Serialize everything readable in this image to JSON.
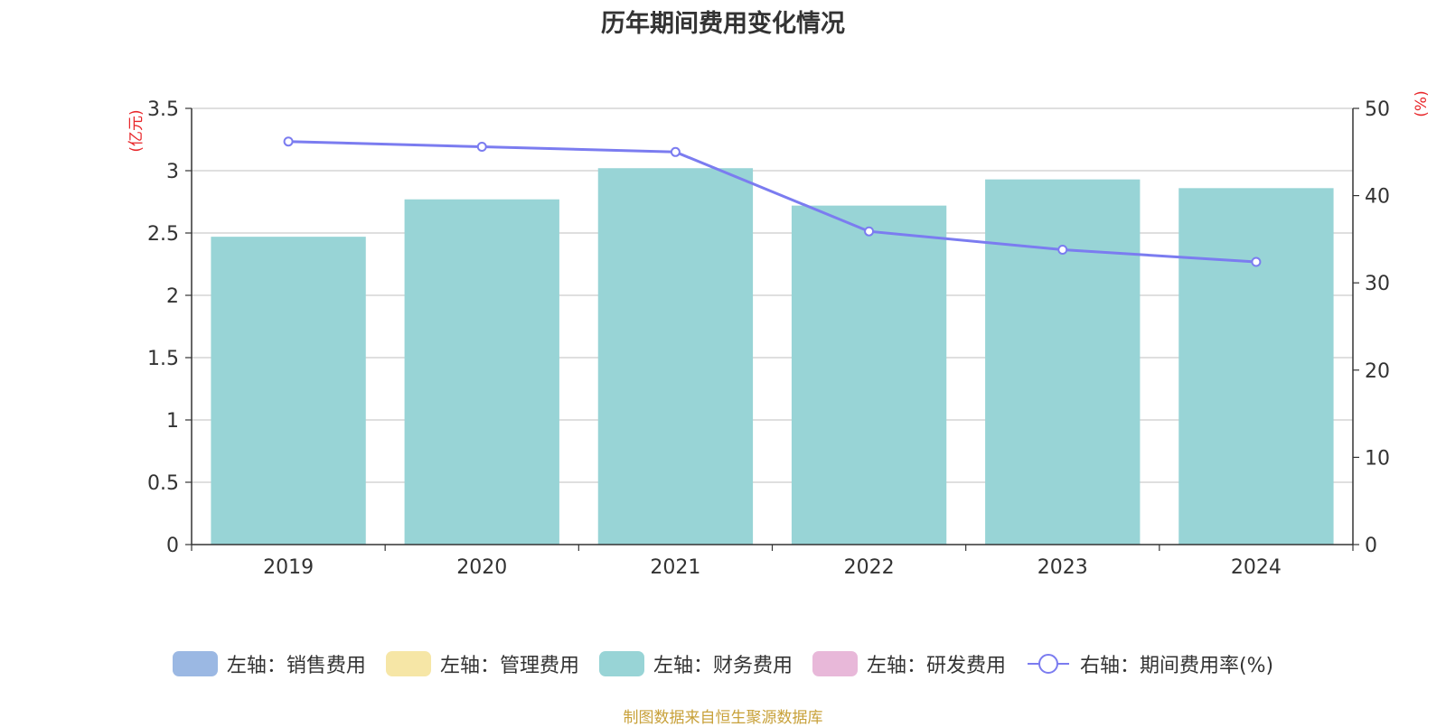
{
  "chart_data": {
    "type": "bar",
    "title": "历年期间费用变化情况",
    "categories": [
      "2019",
      "2020",
      "2021",
      "2022",
      "2023",
      "2024"
    ],
    "series": [
      {
        "name": "左轴：财务费用",
        "axis": "left",
        "type": "bar",
        "color": "#98d4d6",
        "values": [
          2.47,
          2.77,
          3.02,
          2.72,
          2.93,
          2.86
        ]
      },
      {
        "name": "右轴：期间费用率(%)",
        "axis": "right",
        "type": "line",
        "color": "#7b7cf0",
        "values": [
          46.2,
          45.6,
          45.0,
          35.9,
          33.8,
          32.4
        ]
      }
    ],
    "left_axis": {
      "label": "(亿元)",
      "range": [
        0,
        3.5
      ],
      "ticks": [
        "0",
        "0.5",
        "1",
        "1.5",
        "2",
        "2.5",
        "3",
        "3.5"
      ]
    },
    "right_axis": {
      "label": "(%)",
      "range": [
        0,
        50
      ],
      "ticks": [
        "0",
        "10",
        "20",
        "30",
        "40",
        "50"
      ]
    },
    "grid": true,
    "legend_position": "bottom",
    "legend": [
      {
        "label": "左轴：销售费用",
        "color": "#9bb8e3",
        "kind": "bar"
      },
      {
        "label": "左轴：管理费用",
        "color": "#f6e6a6",
        "kind": "bar"
      },
      {
        "label": "左轴：财务费用",
        "color": "#98d4d6",
        "kind": "bar"
      },
      {
        "label": "左轴：研发费用",
        "color": "#e8b8d9",
        "kind": "bar"
      },
      {
        "label": "右轴：期间费用率(%)",
        "color": "#7b7cf0",
        "kind": "line"
      }
    ],
    "source_note": "制图数据来自恒生聚源数据库"
  },
  "colors": {
    "axis_label": "#e8262a",
    "grid": "#cccccc",
    "axis": "#333333",
    "text": "#333333",
    "source": "#c8a13a"
  }
}
